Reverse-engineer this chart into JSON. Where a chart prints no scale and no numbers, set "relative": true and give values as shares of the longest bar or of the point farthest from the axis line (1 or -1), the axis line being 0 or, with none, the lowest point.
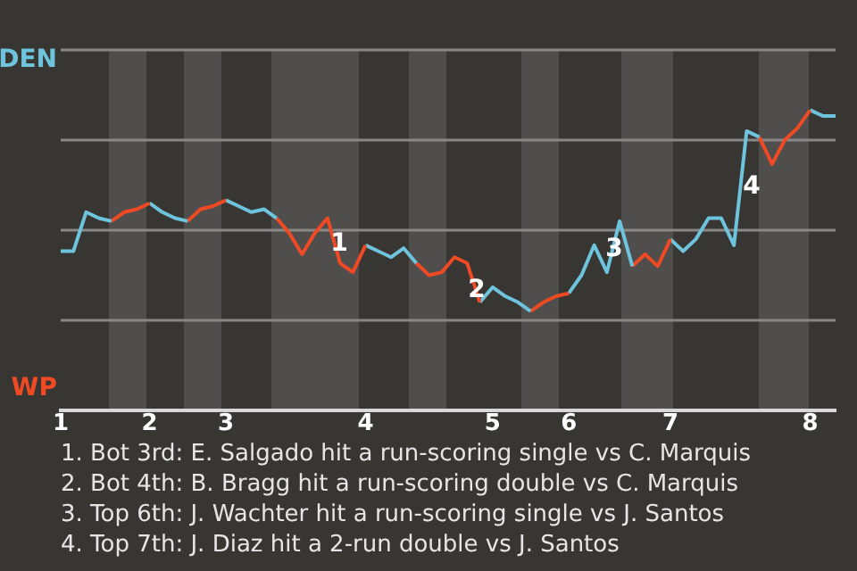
{
  "chart_data": {
    "type": "line",
    "marker": "none",
    "grid": "y",
    "relative": true,
    "categories": [
      "1",
      null,
      null,
      null,
      null,
      null,
      null,
      "2",
      null,
      null,
      null,
      null,
      null,
      "3",
      null,
      null,
      null,
      null,
      null,
      null,
      null,
      null,
      null,
      null,
      "4",
      null,
      null,
      null,
      null,
      null,
      null,
      null,
      null,
      null,
      "5",
      null,
      null,
      null,
      null,
      null,
      "6",
      null,
      null,
      null,
      null,
      null,
      null,
      null,
      "7",
      null,
      null,
      null,
      null,
      null,
      null,
      null,
      null,
      null,
      null,
      "8",
      null,
      null
    ],
    "series": [
      {
        "color": "#6ec3dd",
        "values": [
          0.53,
          0.53,
          0.66,
          0.64,
          0.63,
          null,
          null,
          null,
          null,
          null,
          null,
          null,
          null,
          null,
          null,
          null,
          null,
          null,
          null,
          null,
          null,
          null,
          null,
          null,
          null,
          null,
          null,
          null,
          null,
          null,
          null,
          null,
          null,
          null,
          null,
          null,
          null,
          null,
          null,
          null,
          null,
          null,
          null,
          null,
          null,
          null,
          null,
          null,
          null,
          null,
          null,
          null,
          null,
          null,
          null,
          null,
          null,
          null,
          null,
          null,
          null,
          null
        ]
      },
      {
        "color": "#f04a24",
        "values": [
          null,
          null,
          null,
          null,
          0.63,
          0.66,
          0.67,
          0.69,
          null,
          null,
          null,
          null,
          null,
          null,
          null,
          null,
          null,
          null,
          null,
          null,
          null,
          null,
          null,
          null,
          null,
          null,
          null,
          null,
          null,
          null,
          null,
          null,
          null,
          null,
          null,
          null,
          null,
          null,
          null,
          null,
          null,
          null,
          null,
          null,
          null,
          null,
          null,
          null,
          null,
          null,
          null,
          null,
          null,
          null,
          null,
          null,
          null,
          null,
          null,
          null,
          null,
          null
        ]
      },
      {
        "color": "#6ec3dd",
        "values": [
          null,
          null,
          null,
          null,
          null,
          null,
          null,
          0.69,
          0.66,
          0.64,
          0.63,
          null,
          null,
          null,
          null,
          null,
          null,
          null,
          null,
          null,
          null,
          null,
          null,
          null,
          null,
          null,
          null,
          null,
          null,
          null,
          null,
          null,
          null,
          null,
          null,
          null,
          null,
          null,
          null,
          null,
          null,
          null,
          null,
          null,
          null,
          null,
          null,
          null,
          null,
          null,
          null,
          null,
          null,
          null,
          null,
          null,
          null,
          null,
          null,
          null,
          null,
          null
        ]
      },
      {
        "color": "#f04a24",
        "values": [
          null,
          null,
          null,
          null,
          null,
          null,
          null,
          null,
          null,
          null,
          0.63,
          0.67,
          0.68,
          0.7,
          null,
          null,
          null,
          null,
          null,
          null,
          null,
          null,
          null,
          null,
          null,
          null,
          null,
          null,
          null,
          null,
          null,
          null,
          null,
          null,
          null,
          null,
          null,
          null,
          null,
          null,
          null,
          null,
          null,
          null,
          null,
          null,
          null,
          null,
          null,
          null,
          null,
          null,
          null,
          null,
          null,
          null,
          null,
          null,
          null,
          null,
          null,
          null
        ]
      },
      {
        "color": "#6ec3dd",
        "values": [
          null,
          null,
          null,
          null,
          null,
          null,
          null,
          null,
          null,
          null,
          null,
          null,
          null,
          0.7,
          0.68,
          0.66,
          0.67,
          0.64,
          null,
          null,
          null,
          null,
          null,
          null,
          null,
          null,
          null,
          null,
          null,
          null,
          null,
          null,
          null,
          null,
          null,
          null,
          null,
          null,
          null,
          null,
          null,
          null,
          null,
          null,
          null,
          null,
          null,
          null,
          null,
          null,
          null,
          null,
          null,
          null,
          null,
          null,
          null,
          null,
          null,
          null,
          null,
          null
        ]
      },
      {
        "color": "#f04a24",
        "values": [
          null,
          null,
          null,
          null,
          null,
          null,
          null,
          null,
          null,
          null,
          null,
          null,
          null,
          null,
          null,
          null,
          null,
          0.64,
          0.59,
          0.52,
          0.59,
          0.64,
          0.49,
          0.46,
          0.55,
          null,
          null,
          null,
          null,
          null,
          null,
          null,
          null,
          null,
          null,
          null,
          null,
          null,
          null,
          null,
          null,
          null,
          null,
          null,
          null,
          null,
          null,
          null,
          null,
          null,
          null,
          null,
          null,
          null,
          null,
          null,
          null,
          null,
          null,
          null,
          null,
          null
        ]
      },
      {
        "color": "#6ec3dd",
        "values": [
          null,
          null,
          null,
          null,
          null,
          null,
          null,
          null,
          null,
          null,
          null,
          null,
          null,
          null,
          null,
          null,
          null,
          null,
          null,
          null,
          null,
          null,
          null,
          null,
          0.55,
          0.53,
          0.51,
          0.54,
          0.49,
          null,
          null,
          null,
          null,
          null,
          null,
          null,
          null,
          null,
          null,
          null,
          null,
          null,
          null,
          null,
          null,
          null,
          null,
          null,
          null,
          null,
          null,
          null,
          null,
          null,
          null,
          null,
          null,
          null,
          null,
          null,
          null,
          null
        ]
      },
      {
        "color": "#f04a24",
        "values": [
          null,
          null,
          null,
          null,
          null,
          null,
          null,
          null,
          null,
          null,
          null,
          null,
          null,
          null,
          null,
          null,
          null,
          null,
          null,
          null,
          null,
          null,
          null,
          null,
          null,
          null,
          null,
          null,
          0.49,
          0.45,
          0.46,
          0.51,
          0.49,
          0.36,
          null,
          null,
          null,
          null,
          null,
          null,
          null,
          null,
          null,
          null,
          null,
          null,
          null,
          null,
          null,
          null,
          null,
          null,
          null,
          null,
          null,
          null,
          null,
          null,
          null,
          null,
          null,
          null
        ]
      },
      {
        "color": "#6ec3dd",
        "values": [
          null,
          null,
          null,
          null,
          null,
          null,
          null,
          null,
          null,
          null,
          null,
          null,
          null,
          null,
          null,
          null,
          null,
          null,
          null,
          null,
          null,
          null,
          null,
          null,
          null,
          null,
          null,
          null,
          null,
          null,
          null,
          null,
          null,
          0.36,
          0.41,
          0.38,
          0.36,
          0.33,
          null,
          null,
          null,
          null,
          null,
          null,
          null,
          null,
          null,
          null,
          null,
          null,
          null,
          null,
          null,
          null,
          null,
          null,
          null,
          null,
          null,
          null,
          null,
          null
        ]
      },
      {
        "color": "#f04a24",
        "values": [
          null,
          null,
          null,
          null,
          null,
          null,
          null,
          null,
          null,
          null,
          null,
          null,
          null,
          null,
          null,
          null,
          null,
          null,
          null,
          null,
          null,
          null,
          null,
          null,
          null,
          null,
          null,
          null,
          null,
          null,
          null,
          null,
          null,
          null,
          null,
          null,
          null,
          0.33,
          0.36,
          0.38,
          0.39,
          null,
          null,
          null,
          null,
          null,
          null,
          null,
          null,
          null,
          null,
          null,
          null,
          null,
          null,
          null,
          null,
          null,
          null,
          null,
          null,
          null
        ]
      },
      {
        "color": "#6ec3dd",
        "values": [
          null,
          null,
          null,
          null,
          null,
          null,
          null,
          null,
          null,
          null,
          null,
          null,
          null,
          null,
          null,
          null,
          null,
          null,
          null,
          null,
          null,
          null,
          null,
          null,
          null,
          null,
          null,
          null,
          null,
          null,
          null,
          null,
          null,
          null,
          null,
          null,
          null,
          null,
          null,
          null,
          0.39,
          0.45,
          0.55,
          0.46,
          0.63,
          0.48,
          null,
          null,
          null,
          null,
          null,
          null,
          null,
          null,
          null,
          null,
          null,
          null,
          null,
          null,
          null,
          null
        ]
      },
      {
        "color": "#f04a24",
        "values": [
          null,
          null,
          null,
          null,
          null,
          null,
          null,
          null,
          null,
          null,
          null,
          null,
          null,
          null,
          null,
          null,
          null,
          null,
          null,
          null,
          null,
          null,
          null,
          null,
          null,
          null,
          null,
          null,
          null,
          null,
          null,
          null,
          null,
          null,
          null,
          null,
          null,
          null,
          null,
          null,
          null,
          null,
          null,
          null,
          null,
          0.48,
          0.52,
          0.48,
          0.57,
          null,
          null,
          null,
          null,
          null,
          null,
          null,
          null,
          null,
          null,
          null,
          null,
          null
        ]
      },
      {
        "color": "#6ec3dd",
        "values": [
          null,
          null,
          null,
          null,
          null,
          null,
          null,
          null,
          null,
          null,
          null,
          null,
          null,
          null,
          null,
          null,
          null,
          null,
          null,
          null,
          null,
          null,
          null,
          null,
          null,
          null,
          null,
          null,
          null,
          null,
          null,
          null,
          null,
          null,
          null,
          null,
          null,
          null,
          null,
          null,
          null,
          null,
          null,
          null,
          null,
          null,
          null,
          null,
          0.57,
          0.53,
          0.57,
          0.64,
          0.64,
          0.55,
          0.93,
          0.91,
          null,
          null,
          null,
          null,
          null,
          null
        ]
      },
      {
        "color": "#f04a24",
        "values": [
          null,
          null,
          null,
          null,
          null,
          null,
          null,
          null,
          null,
          null,
          null,
          null,
          null,
          null,
          null,
          null,
          null,
          null,
          null,
          null,
          null,
          null,
          null,
          null,
          null,
          null,
          null,
          null,
          null,
          null,
          null,
          null,
          null,
          null,
          null,
          null,
          null,
          null,
          null,
          null,
          null,
          null,
          null,
          null,
          null,
          null,
          null,
          null,
          null,
          null,
          null,
          null,
          null,
          null,
          null,
          0.91,
          0.82,
          0.9,
          0.94,
          1,
          null,
          null
        ]
      },
      {
        "color": "#6ec3dd",
        "values": [
          null,
          null,
          null,
          null,
          null,
          null,
          null,
          null,
          null,
          null,
          null,
          null,
          null,
          null,
          null,
          null,
          null,
          null,
          null,
          null,
          null,
          null,
          null,
          null,
          null,
          null,
          null,
          null,
          null,
          null,
          null,
          null,
          null,
          null,
          null,
          null,
          null,
          null,
          null,
          null,
          null,
          null,
          null,
          null,
          null,
          null,
          null,
          null,
          null,
          null,
          null,
          null,
          null,
          null,
          null,
          null,
          null,
          null,
          null,
          1,
          0.98,
          0.98
        ]
      }
    ],
    "annotations": [
      "DEN",
      "WP",
      "1",
      "2",
      "3",
      "4",
      "1. Bot 3rd: E. Salgado hit a run-scoring single vs C. Marquis",
      "2. Bot 4th: B. Bragg hit a run-scoring double vs C. Marquis",
      "3. Top 6th: J. Wachter hit a run-scoring single vs J. Santos",
      "4. Top 7th: J. Diaz hit a 2-run double vs J. Santos"
    ]
  }
}
